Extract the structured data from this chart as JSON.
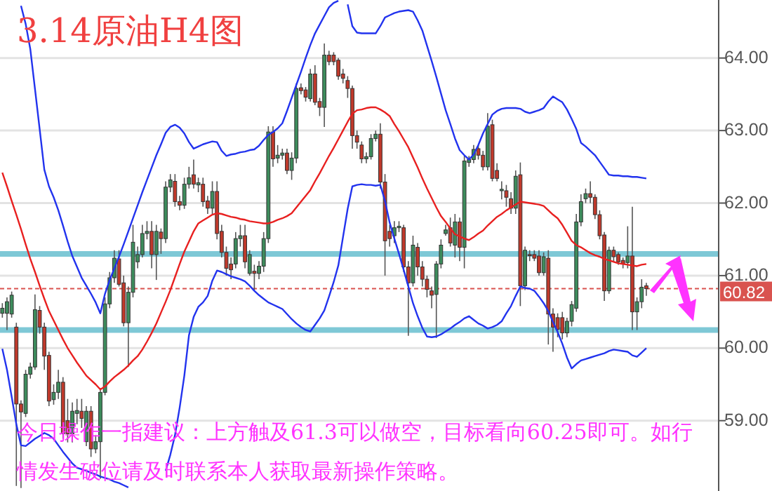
{
  "chart_data": {
    "type": "candlestick",
    "title": "3.14原油H4图",
    "tick_labels": "y",
    "grid": "y",
    "annotations": [
      "今日操作一指建议：上方触及61.3可以做空，目标看向60.25即可。如行情发生破位请及时联系本人获取最新操作策略。"
    ],
    "ylim": [
      58.03,
      64.8
    ],
    "yticks": [
      {
        "value": 59,
        "label": "59.00"
      },
      {
        "value": 60,
        "label": "60.00"
      },
      {
        "value": 61,
        "label": "61.00"
      },
      {
        "value": 62,
        "label": "62.00"
      },
      {
        "value": 63,
        "label": "63.00"
      },
      {
        "value": 64,
        "label": "64.00"
      }
    ],
    "ref_lines": [
      {
        "axis": "y",
        "value": 61.3,
        "label": null,
        "color": "#7ec8d6",
        "line_style": "solid"
      },
      {
        "axis": "y",
        "value": 60.25,
        "label": null,
        "color": "#7ec8d6",
        "line_style": "solid"
      },
      {
        "axis": "y",
        "value": 60.82,
        "label": "60.82",
        "color": "#d9534f",
        "line_style": "dashed"
      }
    ],
    "categories": [
      null,
      null,
      null,
      null,
      null,
      null,
      null,
      null,
      null,
      null,
      null,
      null,
      null,
      null,
      null,
      null,
      null,
      null,
      null,
      null,
      null,
      null,
      null,
      null,
      null,
      null,
      null,
      null,
      null,
      null,
      null,
      null,
      null,
      null,
      null,
      null,
      null,
      null,
      null,
      null,
      null,
      null,
      null,
      null,
      null,
      null,
      null,
      null,
      null,
      null,
      null,
      null,
      null,
      null,
      null,
      null,
      null,
      null,
      null,
      null,
      null,
      null,
      null,
      null,
      null,
      null,
      null,
      null,
      null,
      null,
      null,
      null,
      null,
      null,
      null,
      null,
      null,
      null,
      null,
      null,
      null,
      null,
      null,
      null,
      null,
      null,
      null,
      null,
      null,
      null,
      null,
      null,
      null,
      null,
      null,
      null,
      null,
      null,
      null,
      null,
      null,
      null,
      null,
      null,
      null,
      null,
      null,
      null,
      null,
      null,
      null,
      null,
      null,
      null,
      null,
      null,
      null,
      null,
      null,
      null,
      null,
      null,
      null,
      null,
      null,
      null,
      null,
      null,
      null,
      null,
      null,
      null,
      null,
      null,
      null,
      null,
      null,
      null,
      null,
      null,
      null,
      null,
      null,
      null,
      null,
      null,
      null,
      null,
      null,
      null,
      null,
      null,
      null,
      null
    ],
    "ohlc": [
      [
        60.48,
        60.62,
        60.42,
        60.55
      ],
      [
        60.48,
        60.7,
        60.25,
        60.64
      ],
      [
        60.47,
        60.78,
        60.42,
        60.73
      ],
      [
        60.29,
        60.35,
        58.1,
        59.23
      ],
      [
        59.23,
        59.28,
        58.07,
        59.12
      ],
      [
        59.1,
        59.7,
        59.05,
        59.64
      ],
      [
        59.64,
        59.8,
        59.58,
        59.74
      ],
      [
        59.74,
        60.74,
        59.7,
        60.53
      ],
      [
        60.52,
        60.58,
        60.2,
        60.29
      ],
      [
        60.29,
        60.35,
        59.7,
        59.89
      ],
      [
        59.9,
        59.95,
        59.2,
        59.27
      ],
      [
        59.29,
        59.5,
        59.22,
        59.39
      ],
      [
        59.39,
        59.7,
        59.3,
        59.53
      ],
      [
        59.53,
        59.6,
        58.75,
        58.82
      ],
      [
        59.0,
        59.3,
        58.7,
        58.82
      ],
      [
        58.82,
        59.25,
        58.7,
        59.13
      ],
      [
        59.1,
        59.3,
        58.95,
        59.14
      ],
      [
        59.13,
        59.3,
        58.9,
        59.03
      ],
      [
        58.71,
        59.2,
        58.65,
        59.13
      ],
      [
        59.13,
        59.2,
        58.5,
        58.61
      ],
      [
        58.61,
        58.8,
        58.55,
        58.71
      ],
      [
        58.71,
        59.45,
        58.2,
        59.39
      ],
      [
        59.39,
        60.7,
        59.35,
        60.61
      ],
      [
        60.61,
        61.05,
        60.55,
        60.97
      ],
      [
        60.97,
        61.35,
        60.9,
        61.24
      ],
      [
        61.23,
        61.35,
        60.85,
        60.88
      ],
      [
        60.9,
        61.0,
        60.3,
        60.35
      ],
      [
        60.35,
        60.85,
        59.74,
        60.77
      ],
      [
        60.77,
        61.7,
        60.7,
        61.46
      ],
      [
        61.19,
        61.4,
        61.1,
        61.29
      ],
      [
        61.29,
        61.7,
        61.25,
        61.58
      ],
      [
        61.58,
        61.75,
        61.5,
        61.61
      ],
      [
        61.61,
        61.75,
        61.1,
        61.29
      ],
      [
        61.29,
        61.7,
        60.94,
        61.61
      ],
      [
        61.6,
        61.65,
        61.3,
        61.51
      ],
      [
        61.51,
        62.3,
        61.45,
        62.22
      ],
      [
        62.22,
        62.4,
        62.15,
        62.32
      ],
      [
        62.3,
        62.4,
        61.95,
        62.02
      ],
      [
        62.02,
        62.1,
        61.9,
        61.97
      ],
      [
        61.97,
        62.35,
        61.92,
        62.26
      ],
      [
        62.26,
        62.5,
        62.2,
        62.35
      ],
      [
        62.39,
        62.6,
        62.2,
        62.26
      ],
      [
        62.25,
        62.35,
        62.15,
        62.28
      ],
      [
        62.26,
        62.35,
        61.95,
        62.02
      ],
      [
        62.03,
        62.1,
        61.85,
        61.93
      ],
      [
        61.93,
        62.3,
        61.85,
        62.16
      ],
      [
        62.16,
        62.3,
        61.5,
        61.58
      ],
      [
        61.61,
        61.7,
        61.25,
        61.32
      ],
      [
        61.32,
        61.4,
        61.0,
        61.1
      ],
      [
        61.16,
        61.25,
        60.95,
        61.08
      ],
      [
        61.16,
        61.6,
        61.1,
        61.51
      ],
      [
        61.51,
        61.7,
        61.4,
        61.55
      ],
      [
        61.55,
        61.7,
        61.1,
        61.19
      ],
      [
        61.03,
        61.35,
        61.0,
        61.29
      ],
      [
        61.06,
        61.15,
        60.8,
        61.03
      ],
      [
        61.03,
        61.2,
        60.95,
        61.13
      ],
      [
        61.13,
        61.6,
        61.05,
        61.51
      ],
      [
        61.51,
        63.06,
        61.45,
        62.98
      ],
      [
        62.98,
        63.06,
        62.5,
        62.61
      ],
      [
        62.62,
        62.8,
        62.55,
        62.66
      ],
      [
        62.66,
        62.75,
        62.6,
        62.69
      ],
      [
        62.69,
        62.75,
        62.4,
        62.45
      ],
      [
        62.45,
        62.7,
        62.32,
        62.62
      ],
      [
        62.62,
        63.65,
        62.55,
        63.58
      ],
      [
        63.59,
        63.65,
        63.5,
        63.55
      ],
      [
        63.56,
        63.6,
        63.4,
        63.46
      ],
      [
        63.44,
        63.85,
        63.4,
        63.78
      ],
      [
        63.78,
        63.9,
        63.35,
        63.39
      ],
      [
        63.4,
        63.45,
        63.2,
        63.32
      ],
      [
        63.32,
        64.2,
        63.05,
        64.04
      ],
      [
        64.04,
        64.1,
        63.9,
        63.95
      ],
      [
        64.04,
        64.08,
        63.9,
        63.95
      ],
      [
        63.97,
        64.0,
        63.7,
        63.75
      ],
      [
        63.78,
        63.85,
        63.65,
        63.72
      ],
      [
        63.69,
        63.75,
        63.45,
        63.58
      ],
      [
        63.58,
        63.62,
        62.75,
        62.93
      ],
      [
        62.93,
        63.0,
        62.75,
        62.84
      ],
      [
        62.8,
        62.85,
        62.55,
        62.61
      ],
      [
        62.61,
        62.7,
        62.55,
        62.64
      ],
      [
        62.64,
        62.95,
        62.6,
        62.89
      ],
      [
        62.89,
        63.0,
        62.85,
        62.95
      ],
      [
        62.95,
        63.1,
        62.2,
        62.29
      ],
      [
        62.29,
        62.4,
        61.0,
        61.48
      ],
      [
        61.61,
        61.7,
        61.4,
        61.51
      ],
      [
        61.55,
        61.75,
        61.45,
        61.66
      ],
      [
        61.66,
        61.75,
        61.6,
        61.68
      ],
      [
        61.66,
        61.7,
        61.05,
        61.12
      ],
      [
        61.12,
        61.2,
        60.17,
        60.9
      ],
      [
        60.9,
        61.55,
        60.85,
        61.42
      ],
      [
        61.39,
        61.45,
        61.0,
        61.12
      ],
      [
        61.12,
        61.2,
        60.85,
        60.95
      ],
      [
        60.95,
        61.0,
        60.7,
        60.81
      ],
      [
        60.79,
        60.85,
        60.55,
        60.73
      ],
      [
        60.74,
        61.2,
        60.14,
        61.16
      ],
      [
        61.16,
        61.5,
        61.1,
        61.42
      ],
      [
        61.58,
        61.7,
        61.55,
        61.63
      ],
      [
        61.66,
        61.8,
        61.4,
        61.45
      ],
      [
        61.42,
        61.85,
        61.25,
        61.74
      ],
      [
        61.74,
        61.8,
        61.2,
        61.39
      ],
      [
        61.39,
        62.65,
        61.1,
        62.58
      ],
      [
        62.56,
        62.65,
        62.5,
        62.6
      ],
      [
        62.6,
        62.8,
        62.55,
        62.74
      ],
      [
        62.75,
        62.8,
        62.6,
        62.66
      ],
      [
        62.66,
        62.72,
        62.45,
        62.5
      ],
      [
        62.5,
        63.24,
        62.45,
        63.06
      ],
      [
        63.08,
        63.15,
        62.3,
        62.34
      ],
      [
        62.45,
        62.55,
        62.3,
        62.34
      ],
      [
        62.17,
        62.3,
        62.05,
        62.19
      ],
      [
        62.17,
        62.25,
        61.95,
        62.08
      ],
      [
        62.06,
        62.15,
        61.85,
        61.93
      ],
      [
        61.93,
        62.45,
        61.85,
        62.37
      ],
      [
        62.39,
        62.56,
        60.58,
        60.86
      ],
      [
        60.86,
        61.4,
        60.8,
        61.35
      ],
      [
        61.29,
        61.35,
        61.2,
        61.28
      ],
      [
        61.29,
        61.35,
        61.2,
        61.24
      ],
      [
        61.27,
        61.35,
        61.0,
        61.04
      ],
      [
        61.04,
        61.32,
        61.0,
        61.26
      ],
      [
        61.24,
        61.35,
        60.05,
        60.47
      ],
      [
        60.47,
        60.55,
        59.95,
        60.29
      ],
      [
        60.42,
        60.48,
        60.15,
        60.26
      ],
      [
        60.42,
        60.5,
        60.12,
        60.21
      ],
      [
        60.21,
        60.42,
        60.15,
        60.37
      ],
      [
        60.37,
        60.65,
        60.3,
        60.6
      ],
      [
        60.55,
        61.85,
        60.5,
        61.74
      ],
      [
        61.74,
        62.12,
        61.68,
        62.02
      ],
      [
        62.06,
        62.2,
        62.0,
        62.13
      ],
      [
        62.13,
        62.3,
        62.0,
        62.08
      ],
      [
        62.08,
        62.12,
        61.78,
        61.84
      ],
      [
        61.84,
        61.9,
        61.5,
        61.55
      ],
      [
        61.56,
        61.6,
        60.65,
        60.79
      ],
      [
        60.79,
        61.4,
        60.75,
        61.35
      ],
      [
        61.35,
        61.4,
        61.2,
        61.26
      ],
      [
        61.29,
        61.32,
        61.15,
        61.19
      ],
      [
        61.21,
        61.25,
        61.1,
        61.16
      ],
      [
        61.18,
        61.68,
        61.1,
        61.27
      ],
      [
        61.27,
        61.95,
        60.25,
        60.5
      ],
      [
        60.5,
        60.7,
        60.25,
        60.64
      ],
      [
        60.64,
        60.95,
        60.55,
        60.84
      ],
      [
        60.86,
        60.9,
        60.72,
        60.82
      ],
      null,
      null,
      null,
      null,
      null,
      null,
      null,
      null,
      null,
      null,
      null,
      null,
      null,
      null,
      null
    ],
    "colors": [
      "#3d8c5c",
      "#3d8c5c",
      "#3d8c5c",
      "#c0392b",
      "#c0392b",
      "#3d8c5c",
      "#3d8c5c",
      "#3d8c5c",
      "#c0392b",
      "#c0392b",
      "#c0392b",
      "#3d8c5c",
      "#3d8c5c",
      "#c0392b",
      "#c0392b",
      "#3d8c5c",
      "#3d8c5c",
      "#c0392b",
      "#3d8c5c",
      "#c0392b",
      "#3d8c5c",
      "#3d8c5c",
      "#3d8c5c",
      "#3d8c5c",
      "#3d8c5c",
      "#c0392b",
      "#c0392b",
      "#3d8c5c",
      "#3d8c5c",
      "#3d8c5c",
      "#3d8c5c",
      "#3d8c5c",
      "#c0392b",
      "#3d8c5c",
      "#c0392b",
      "#3d8c5c",
      "#3d8c5c",
      "#c0392b",
      "#c0392b",
      "#3d8c5c",
      "#3d8c5c",
      "#c0392b",
      "#3d8c5c",
      "#c0392b",
      "#c0392b",
      "#3d8c5c",
      "#c0392b",
      "#c0392b",
      "#c0392b",
      "#c0392b",
      "#3d8c5c",
      "#3d8c5c",
      "#c0392b",
      "#3d8c5c",
      "#c0392b",
      "#3d8c5c",
      "#3d8c5c",
      "#3d8c5c",
      "#c0392b",
      "#3d8c5c",
      "#3d8c5c",
      "#c0392b",
      "#3d8c5c",
      "#3d8c5c",
      "#c0392b",
      "#c0392b",
      "#3d8c5c",
      "#c0392b",
      "#c0392b",
      "#3d8c5c",
      "#c0392b",
      "#c0392b",
      "#c0392b",
      "#c0392b",
      "#c0392b",
      "#c0392b",
      "#c0392b",
      "#c0392b",
      "#3d8c5c",
      "#3d8c5c",
      "#3d8c5c",
      "#c0392b",
      "#c0392b",
      "#c0392b",
      "#3d8c5c",
      "#3d8c5c",
      "#c0392b",
      "#c0392b",
      "#3d8c5c",
      "#c0392b",
      "#c0392b",
      "#c0392b",
      "#c0392b",
      "#3d8c5c",
      "#3d8c5c",
      "#3d8c5c",
      "#c0392b",
      "#3d8c5c",
      "#c0392b",
      "#3d8c5c",
      "#3d8c5c",
      "#3d8c5c",
      "#c0392b",
      "#c0392b",
      "#3d8c5c",
      "#c0392b",
      "#c0392b",
      "#3d8c5c",
      "#c0392b",
      "#c0392b",
      "#3d8c5c",
      "#c0392b",
      "#3d8c5c",
      "#c0392b",
      "#c0392b",
      "#c0392b",
      "#3d8c5c",
      "#c0392b",
      "#c0392b",
      "#c0392b",
      "#c0392b",
      "#3d8c5c",
      "#3d8c5c",
      "#3d8c5c",
      "#3d8c5c",
      "#3d8c5c",
      "#c0392b",
      "#c0392b",
      "#c0392b",
      "#c0392b",
      "#3d8c5c",
      "#c0392b",
      "#c0392b",
      "#c0392b",
      "#3d8c5c",
      "#c0392b",
      "#3d8c5c",
      "#3d8c5c",
      "#c0392b",
      null,
      null,
      null,
      null,
      null,
      null,
      null,
      null,
      null,
      null,
      null,
      null,
      null,
      null,
      null
    ],
    "series": [
      {
        "type": "line",
        "color": "#2233ee",
        "values": [
          null,
          null,
          null,
          null,
          64.72,
          64.47,
          64.12,
          63.57,
          63.02,
          62.46,
          62.23,
          62.08,
          61.9,
          61.69,
          61.47,
          61.27,
          61.12,
          60.97,
          60.86,
          60.75,
          60.63,
          60.48,
          60.75,
          60.94,
          61.1,
          61.26,
          61.43,
          61.61,
          61.79,
          61.97,
          62.15,
          62.32,
          62.49,
          62.66,
          62.81,
          62.97,
          63.05,
          63.08,
          63.04,
          62.96,
          62.84,
          62.75,
          62.78,
          62.81,
          62.83,
          62.85,
          62.84,
          62.72,
          62.65,
          62.67,
          62.68,
          62.7,
          62.71,
          62.73,
          62.74,
          62.79,
          62.87,
          62.94,
          62.98,
          63.03,
          63.1,
          63.27,
          63.45,
          63.63,
          63.81,
          64.0,
          64.18,
          64.34,
          64.46,
          64.58,
          64.7,
          64.76,
          64.79,
          null,
          64.74,
          64.44,
          64.35,
          64.34,
          64.34,
          64.34,
          64.34,
          64.44,
          64.56,
          64.59,
          64.62,
          64.64,
          64.65,
          64.66,
          64.64,
          64.52,
          64.38,
          64.17,
          63.96,
          63.74,
          63.51,
          63.28,
          63.09,
          62.89,
          62.73,
          62.66,
          62.6,
          62.67,
          62.8,
          62.96,
          63.09,
          63.22,
          63.27,
          63.3,
          63.31,
          63.31,
          63.31,
          63.3,
          63.26,
          63.24,
          63.26,
          63.28,
          63.31,
          63.4,
          63.47,
          63.43,
          63.39,
          63.29,
          63.16,
          63.02,
          62.83,
          62.78,
          62.72,
          62.66,
          62.57,
          62.48,
          62.39,
          62.38,
          62.38,
          62.37,
          62.37,
          62.36,
          62.36,
          62.35,
          62.34,
          null,
          null,
          null,
          null,
          null,
          null,
          null,
          null,
          null,
          null,
          null,
          null,
          null,
          null,
          null
        ]
      },
      {
        "type": "line",
        "color": "#e82020",
        "values": [
          62.42,
          62.23,
          62.03,
          61.84,
          61.64,
          61.43,
          61.23,
          61.05,
          60.86,
          60.68,
          60.51,
          60.38,
          60.25,
          60.12,
          60.0,
          59.9,
          59.8,
          59.71,
          59.62,
          59.56,
          59.5,
          59.43,
          59.47,
          59.54,
          59.6,
          59.65,
          59.7,
          59.76,
          59.83,
          59.89,
          59.98,
          60.09,
          60.21,
          60.34,
          60.49,
          60.64,
          60.8,
          60.98,
          61.16,
          61.33,
          61.47,
          61.61,
          61.72,
          61.76,
          61.8,
          61.84,
          61.86,
          61.85,
          61.83,
          61.81,
          61.8,
          61.78,
          61.77,
          61.75,
          61.74,
          61.73,
          61.72,
          61.72,
          61.74,
          61.77,
          61.79,
          61.82,
          61.86,
          61.94,
          62.02,
          62.1,
          62.18,
          62.3,
          62.41,
          62.53,
          62.65,
          62.76,
          62.88,
          63.0,
          63.12,
          63.23,
          63.28,
          63.29,
          63.31,
          63.32,
          63.32,
          63.29,
          63.25,
          63.2,
          63.09,
          62.99,
          62.88,
          62.77,
          62.63,
          62.49,
          62.34,
          62.2,
          62.07,
          61.94,
          61.82,
          61.74,
          61.65,
          61.57,
          61.54,
          61.51,
          61.49,
          61.53,
          61.58,
          61.62,
          61.69,
          61.75,
          61.81,
          61.85,
          61.9,
          61.94,
          61.98,
          62.02,
          62.01,
          62.0,
          61.99,
          61.98,
          61.96,
          61.9,
          61.84,
          61.79,
          61.7,
          61.59,
          61.48,
          61.42,
          61.39,
          61.35,
          61.31,
          61.28,
          61.26,
          61.23,
          61.21,
          61.19,
          61.17,
          61.16,
          61.15,
          61.14,
          61.13,
          61.15,
          61.16,
          null,
          null,
          null,
          null,
          null,
          null,
          null,
          null,
          null,
          null,
          null,
          null,
          null,
          null,
          null
        ]
      },
      {
        "type": "line",
        "color": "#2233ee",
        "values": [
          59.99,
          59.7,
          59.33,
          58.95,
          58.66,
          58.65,
          58.7,
          58.75,
          58.79,
          58.83,
          58.8,
          58.75,
          58.66,
          58.57,
          58.49,
          58.41,
          58.35,
          58.33,
          58.31,
          58.28,
          58.26,
          58.23,
          58.21,
          58.19,
          58.16,
          58.14,
          58.11,
          58.08,
          null,
          null,
          null,
          null,
          null,
          null,
          null,
          58.31,
          58.53,
          58.8,
          59.18,
          59.62,
          60.18,
          60.43,
          60.57,
          60.63,
          60.72,
          60.93,
          61.07,
          61.05,
          61.02,
          60.99,
          60.97,
          60.95,
          60.92,
          60.86,
          60.79,
          60.73,
          60.68,
          60.63,
          60.6,
          60.57,
          60.54,
          60.47,
          60.4,
          60.34,
          60.29,
          60.25,
          60.23,
          60.32,
          60.41,
          60.52,
          60.71,
          60.91,
          61.14,
          61.53,
          61.92,
          62.23,
          62.25,
          62.26,
          62.25,
          62.25,
          62.24,
          62.25,
          62.03,
          61.73,
          61.51,
          61.3,
          61.08,
          60.85,
          60.62,
          60.44,
          60.28,
          60.16,
          60.15,
          60.16,
          60.19,
          60.23,
          60.27,
          60.32,
          60.36,
          60.41,
          60.44,
          60.39,
          60.34,
          60.31,
          60.27,
          60.29,
          60.32,
          60.37,
          60.48,
          60.58,
          60.72,
          60.85,
          60.83,
          60.82,
          60.79,
          60.71,
          60.62,
          60.51,
          60.36,
          60.22,
          60.06,
          59.87,
          59.72,
          59.78,
          59.83,
          59.85,
          59.87,
          59.89,
          59.91,
          59.93,
          59.96,
          59.98,
          59.97,
          59.96,
          59.95,
          59.9,
          59.88,
          59.94,
          60.0,
          null,
          null,
          null,
          null,
          null,
          null,
          null,
          null,
          null,
          null,
          null,
          null,
          null,
          null,
          null
        ]
      }
    ]
  }
}
